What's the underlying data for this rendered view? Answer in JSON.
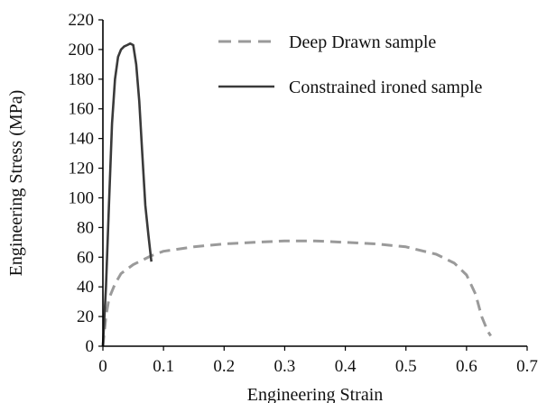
{
  "chart_data": {
    "type": "line",
    "title": "",
    "xlabel": "Engineering Strain",
    "ylabel": "Engineering  Stress (MPa)",
    "xlim": [
      0,
      0.7
    ],
    "ylim": [
      0,
      220
    ],
    "xticks": [
      "0",
      "0.1",
      "0.2",
      "0.3",
      "0.4",
      "0.5",
      "0.6",
      "0.7"
    ],
    "yticks": [
      "0",
      "20",
      "40",
      "60",
      "80",
      "100",
      "120",
      "140",
      "160",
      "180",
      "200",
      "220"
    ],
    "grid": false,
    "legend_position": "top-right",
    "series": [
      {
        "name": "Deep Drawn sample",
        "style": "dashed",
        "color": "#9a9a9a",
        "x": [
          0.0,
          0.005,
          0.01,
          0.02,
          0.03,
          0.05,
          0.08,
          0.1,
          0.15,
          0.2,
          0.25,
          0.3,
          0.35,
          0.4,
          0.45,
          0.5,
          0.55,
          0.58,
          0.6,
          0.615,
          0.625,
          0.635,
          0.64
        ],
        "y": [
          0,
          20,
          32,
          42,
          49,
          55,
          61,
          64,
          67,
          69,
          70,
          71,
          71,
          70,
          69,
          67,
          62,
          56,
          48,
          35,
          20,
          10,
          7
        ]
      },
      {
        "name": "Constrained ironed sample",
        "style": "solid",
        "color": "#3a3a3a",
        "x": [
          0.0,
          0.005,
          0.01,
          0.015,
          0.02,
          0.025,
          0.03,
          0.035,
          0.04,
          0.045,
          0.05,
          0.055,
          0.06,
          0.065,
          0.07,
          0.075,
          0.08
        ],
        "y": [
          0,
          40,
          95,
          150,
          180,
          195,
          200,
          202,
          203,
          204,
          203,
          190,
          165,
          130,
          95,
          75,
          57
        ]
      }
    ]
  }
}
